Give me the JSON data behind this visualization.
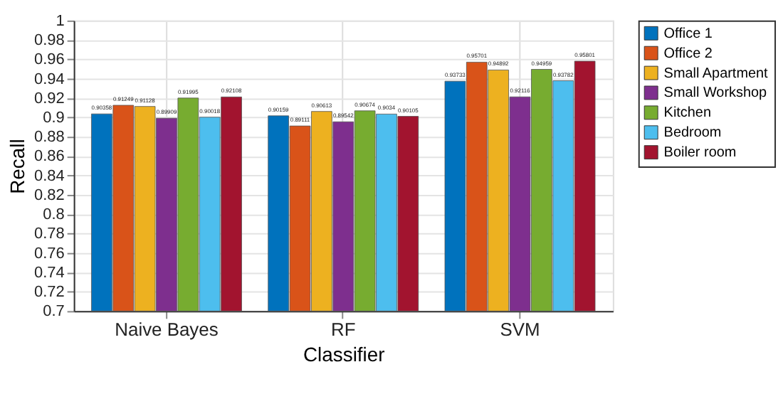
{
  "chart_data": {
    "type": "bar",
    "xlabel": "Classifier",
    "ylabel": "Recall",
    "categories": [
      "Naive Bayes",
      "RF",
      "SVM"
    ],
    "series": [
      {
        "name": "Office 1",
        "color": "#0072bd",
        "values": [
          0.90358,
          0.90159,
          0.93733
        ]
      },
      {
        "name": "Office 2",
        "color": "#d95319",
        "values": [
          0.91249,
          0.89111,
          0.95701
        ]
      },
      {
        "name": "Small Apartment",
        "color": "#edb120",
        "values": [
          0.91128,
          0.90613,
          0.94892
        ]
      },
      {
        "name": "Small Workshop",
        "color": "#7e2f8e",
        "values": [
          0.89909,
          0.89542,
          0.92116
        ]
      },
      {
        "name": "Kitchen",
        "color": "#77ac30",
        "values": [
          0.91995,
          0.90674,
          0.94959
        ]
      },
      {
        "name": "Bedroom",
        "color": "#4dbeee",
        "values": [
          0.90018,
          0.9034,
          0.93782
        ]
      },
      {
        "name": "Boiler room",
        "color": "#a2142f",
        "values": [
          0.92108,
          0.90105,
          0.95801
        ]
      }
    ],
    "ylim": [
      0.7,
      1
    ],
    "yticks": [
      0.7,
      0.72,
      0.74,
      0.76,
      0.78,
      0.8,
      0.82,
      0.84,
      0.86,
      0.88,
      0.9,
      0.92,
      0.94,
      0.96,
      0.98,
      1
    ],
    "grid": true,
    "legend": "right",
    "data_labels": true
  }
}
